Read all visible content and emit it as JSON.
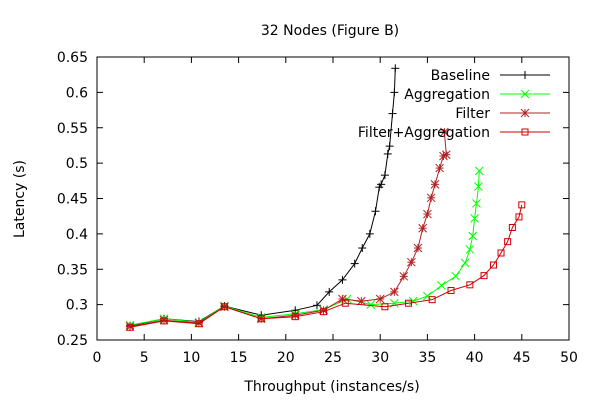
{
  "chart_data": {
    "type": "line",
    "title": "32 Nodes (Figure B)",
    "xlabel": "Throughput (instances/s)",
    "ylabel": "Latency (s)",
    "xlim": [
      0,
      50
    ],
    "ylim": [
      0.25,
      0.65
    ],
    "xticks": [
      "0",
      "5",
      "10",
      "15",
      "20",
      "25",
      "30",
      "35",
      "40",
      "45",
      "50"
    ],
    "yticks": [
      "0.25",
      "0.3",
      "0.35",
      "0.4",
      "0.45",
      "0.5",
      "0.55",
      "0.6",
      "0.65"
    ],
    "grid": false,
    "legend_position": "top-right",
    "series": [
      {
        "name": "Baseline",
        "color": "#000000",
        "marker": "plus",
        "x": [
          3.5,
          7.1,
          10.8,
          13.5,
          17.4,
          21.0,
          23.3,
          24.6,
          26.0,
          27.3,
          28.1,
          28.9,
          29.5,
          29.9,
          30.1,
          30.5,
          30.8,
          31.0,
          31.3,
          31.5,
          31.6
        ],
        "y": [
          0.27,
          0.28,
          0.276,
          0.298,
          0.285,
          0.292,
          0.299,
          0.318,
          0.335,
          0.358,
          0.38,
          0.4,
          0.432,
          0.466,
          0.47,
          0.483,
          0.513,
          0.524,
          0.57,
          0.6,
          0.634
        ]
      },
      {
        "name": "Aggregation",
        "color": "#00ff00",
        "marker": "x",
        "x": [
          3.5,
          7.1,
          10.8,
          13.5,
          17.4,
          21.0,
          24.0,
          26.5,
          29.0,
          31.5,
          33.5,
          35.0,
          36.5,
          38.0,
          39.0,
          39.5,
          39.8,
          40.0,
          40.2,
          40.4,
          40.5
        ],
        "y": [
          0.271,
          0.28,
          0.275,
          0.298,
          0.282,
          0.287,
          0.293,
          0.308,
          0.3,
          0.302,
          0.305,
          0.312,
          0.327,
          0.34,
          0.359,
          0.378,
          0.397,
          0.422,
          0.443,
          0.467,
          0.489
        ]
      },
      {
        "name": "Filter",
        "color": "#b22222",
        "marker": "star",
        "x": [
          3.5,
          7.1,
          10.8,
          13.5,
          17.4,
          21.0,
          24.0,
          26.0,
          28.0,
          30.0,
          31.5,
          32.5,
          33.3,
          34.0,
          34.5,
          35.0,
          35.4,
          35.8,
          36.3,
          36.7,
          37.0,
          36.8
        ],
        "y": [
          0.269,
          0.278,
          0.274,
          0.297,
          0.28,
          0.285,
          0.292,
          0.308,
          0.305,
          0.308,
          0.318,
          0.34,
          0.36,
          0.38,
          0.408,
          0.428,
          0.451,
          0.47,
          0.493,
          0.51,
          0.512,
          0.544
        ]
      },
      {
        "name": "Filter+Aggregation",
        "color": "#cc0000",
        "marker": "square",
        "x": [
          3.5,
          7.1,
          10.8,
          13.5,
          17.4,
          21.0,
          24.0,
          26.3,
          30.5,
          33.0,
          35.5,
          37.5,
          39.5,
          41.0,
          42.0,
          42.8,
          43.5,
          44.0,
          44.7,
          45.0
        ],
        "y": [
          0.268,
          0.277,
          0.273,
          0.297,
          0.28,
          0.283,
          0.29,
          0.302,
          0.297,
          0.302,
          0.307,
          0.32,
          0.328,
          0.341,
          0.356,
          0.373,
          0.389,
          0.409,
          0.424,
          0.441
        ]
      }
    ]
  }
}
